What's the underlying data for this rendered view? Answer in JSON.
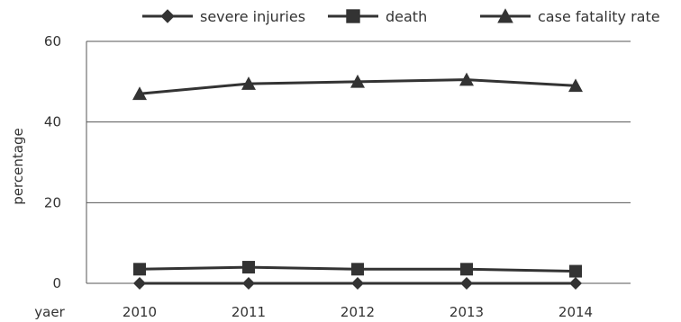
{
  "chart_data": {
    "type": "line",
    "title": "",
    "xlabel": "yaer",
    "ylabel": "percentage",
    "categories": [
      "2010",
      "2011",
      "2012",
      "2013",
      "2014"
    ],
    "ylim": [
      0,
      60
    ],
    "yticks": [
      0,
      20,
      40,
      60
    ],
    "grid": true,
    "legend_position": "top",
    "series": [
      {
        "name": "severe injuries",
        "marker": "diamond",
        "color": "#333333",
        "values": [
          0,
          0,
          0,
          0,
          0
        ]
      },
      {
        "name": "death",
        "marker": "square",
        "color": "#333333",
        "values": [
          3.5,
          4.0,
          3.5,
          3.5,
          3.0
        ]
      },
      {
        "name": "case fatality rate",
        "marker": "triangle",
        "color": "#333333",
        "values": [
          47.0,
          49.5,
          50.0,
          50.5,
          49.0
        ]
      }
    ]
  }
}
